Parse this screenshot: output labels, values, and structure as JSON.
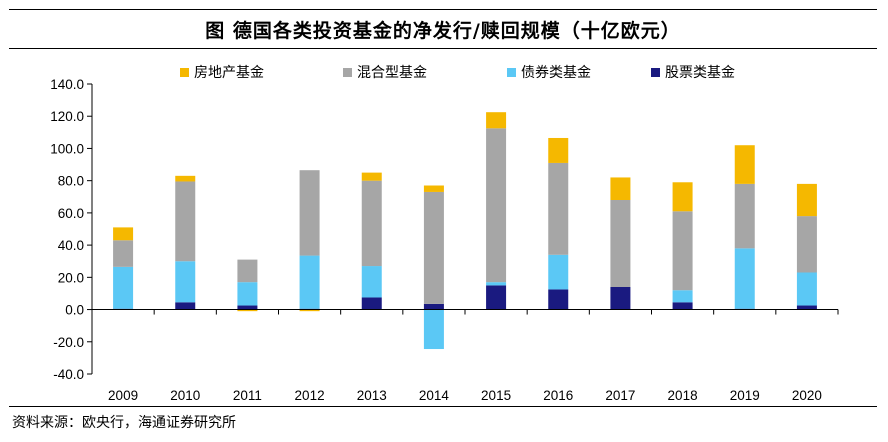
{
  "title": "图  德国各类投资基金的净发行/赎回规模（十亿欧元）",
  "source": "资料来源：欧央行，海通证券研究所",
  "chart_data": {
    "type": "bar",
    "stacked": true,
    "title": "",
    "xlabel": "",
    "ylabel": "",
    "ylim": [
      -40,
      140
    ],
    "yticks": [
      -40,
      -20,
      0,
      20,
      40,
      60,
      80,
      100,
      120,
      140
    ],
    "ytick_labels": [
      "-40.0",
      "-20.0",
      "0.0",
      "20.0",
      "40.0",
      "60.0",
      "80.0",
      "100.0",
      "120.0",
      "140.0"
    ],
    "grid": false,
    "legend_position": "top",
    "categories": [
      "2009",
      "2010",
      "2011",
      "2012",
      "2013",
      "2014",
      "2015",
      "2016",
      "2017",
      "2018",
      "2019",
      "2020"
    ],
    "series": [
      {
        "name": "股票类基金",
        "color": "#1a1a80",
        "values": [
          0.5,
          4.5,
          2.5,
          0.5,
          7.5,
          3.5,
          15,
          12.5,
          14,
          4.5,
          0.5,
          2.5
        ]
      },
      {
        "name": "债券类基金",
        "color": "#5bc8f5",
        "values": [
          26,
          25.5,
          14.5,
          33,
          19.5,
          -24.5,
          2,
          21.5,
          0,
          7.5,
          37.5,
          20.5
        ]
      },
      {
        "name": "混合型基金",
        "color": "#a6a6a6",
        "values": [
          16.5,
          49.5,
          14,
          53,
          53,
          69.5,
          95.5,
          57,
          54,
          49,
          40,
          35
        ]
      },
      {
        "name": "房地产基金",
        "color": "#f5b800",
        "values": [
          8,
          3.5,
          -1,
          -1,
          5,
          4,
          10,
          15.5,
          14,
          18,
          24,
          20
        ]
      }
    ],
    "legend_order": [
      "房地产基金",
      "混合型基金",
      "债券类基金",
      "股票类基金"
    ]
  }
}
